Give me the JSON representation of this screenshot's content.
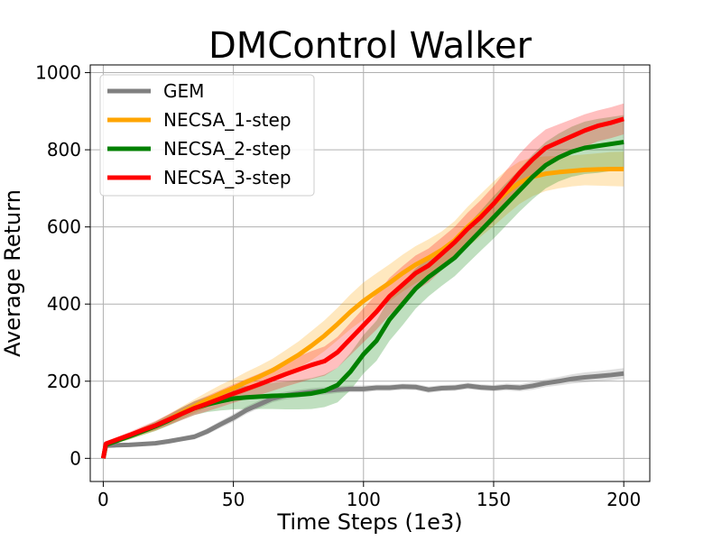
{
  "chart_data": {
    "type": "line",
    "title": "DMControl Walker",
    "xlabel": "Time Steps (1e3)",
    "ylabel": "Average Return",
    "xlim": [
      -5,
      210
    ],
    "ylim": [
      -60,
      1020
    ],
    "xticks": [
      0,
      50,
      100,
      150,
      200
    ],
    "yticks": [
      0,
      200,
      400,
      600,
      800,
      1000
    ],
    "grid": true,
    "legend_position": "top-left",
    "series": [
      {
        "name": "GEM",
        "color": "#808080",
        "x": [
          0,
          1,
          5,
          10,
          15,
          20,
          25,
          30,
          35,
          40,
          45,
          50,
          55,
          60,
          65,
          70,
          75,
          80,
          85,
          90,
          95,
          100,
          105,
          110,
          115,
          120,
          125,
          130,
          135,
          140,
          145,
          150,
          155,
          160,
          165,
          170,
          175,
          180,
          185,
          190,
          195,
          200
        ],
        "y": [
          0,
          33,
          34,
          35,
          37,
          39,
          44,
          50,
          56,
          70,
          88,
          105,
          125,
          140,
          155,
          163,
          168,
          172,
          175,
          178,
          180,
          180,
          183,
          183,
          186,
          185,
          178,
          182,
          183,
          188,
          184,
          182,
          185,
          183,
          188,
          195,
          200,
          206,
          210,
          213,
          216,
          220
        ],
        "band": [
          0,
          4,
          4,
          5,
          5,
          5,
          6,
          6,
          7,
          8,
          9,
          10,
          10,
          10,
          10,
          10,
          10,
          10,
          10,
          9,
          9,
          9,
          8,
          8,
          8,
          8,
          8,
          8,
          8,
          8,
          8,
          8,
          9,
          9,
          10,
          10,
          11,
          12,
          13,
          13,
          14,
          14
        ]
      },
      {
        "name": "NECSA_1-step",
        "color": "#ffa500",
        "x": [
          0,
          1,
          5,
          10,
          15,
          20,
          25,
          30,
          35,
          40,
          45,
          50,
          55,
          60,
          65,
          70,
          75,
          80,
          85,
          90,
          95,
          100,
          105,
          110,
          115,
          120,
          125,
          130,
          135,
          140,
          145,
          150,
          155,
          160,
          165,
          170,
          175,
          180,
          185,
          190,
          195,
          200
        ],
        "y": [
          0,
          35,
          45,
          57,
          70,
          83,
          100,
          118,
          135,
          152,
          168,
          182,
          198,
          212,
          228,
          248,
          268,
          292,
          318,
          348,
          380,
          408,
          432,
          455,
          480,
          502,
          520,
          540,
          565,
          600,
          630,
          660,
          690,
          715,
          730,
          738,
          742,
          745,
          748,
          749,
          750,
          750
        ],
        "band": [
          0,
          5,
          6,
          8,
          10,
          12,
          14,
          16,
          18,
          20,
          22,
          24,
          26,
          28,
          30,
          32,
          35,
          38,
          40,
          42,
          45,
          48,
          48,
          48,
          48,
          48,
          48,
          48,
          50,
          52,
          55,
          58,
          58,
          55,
          50,
          45,
          42,
          40,
          40,
          42,
          44,
          45
        ]
      },
      {
        "name": "NECSA_2-step",
        "color": "#008000",
        "x": [
          0,
          1,
          5,
          10,
          15,
          20,
          25,
          30,
          35,
          40,
          45,
          50,
          55,
          60,
          65,
          70,
          75,
          80,
          85,
          90,
          95,
          100,
          105,
          110,
          115,
          120,
          125,
          130,
          135,
          140,
          145,
          150,
          155,
          160,
          165,
          170,
          175,
          180,
          185,
          190,
          195,
          200
        ],
        "y": [
          0,
          35,
          45,
          57,
          70,
          83,
          98,
          115,
          130,
          140,
          148,
          155,
          158,
          160,
          162,
          163,
          165,
          168,
          175,
          190,
          225,
          270,
          305,
          360,
          400,
          440,
          470,
          495,
          520,
          555,
          590,
          625,
          660,
          695,
          730,
          760,
          780,
          795,
          805,
          810,
          815,
          820
        ],
        "band": [
          0,
          5,
          6,
          8,
          10,
          12,
          14,
          16,
          18,
          20,
          24,
          28,
          30,
          32,
          34,
          36,
          38,
          40,
          42,
          45,
          48,
          50,
          52,
          55,
          55,
          52,
          50,
          48,
          48,
          50,
          52,
          55,
          55,
          55,
          58,
          60,
          62,
          65,
          68,
          70,
          70,
          70
        ]
      },
      {
        "name": "NECSA_3-step",
        "color": "#ff0000",
        "x": [
          0,
          1,
          5,
          10,
          15,
          20,
          25,
          30,
          35,
          40,
          45,
          50,
          55,
          60,
          65,
          70,
          75,
          80,
          85,
          90,
          95,
          100,
          105,
          110,
          115,
          120,
          125,
          130,
          135,
          140,
          145,
          150,
          155,
          160,
          165,
          170,
          175,
          180,
          185,
          190,
          195,
          200
        ],
        "y": [
          0,
          38,
          48,
          60,
          73,
          85,
          100,
          115,
          130,
          142,
          155,
          168,
          180,
          192,
          205,
          218,
          230,
          242,
          252,
          275,
          310,
          345,
          380,
          420,
          450,
          480,
          500,
          530,
          560,
          595,
          625,
          660,
          700,
          740,
          775,
          805,
          820,
          835,
          850,
          862,
          870,
          880
        ],
        "band": [
          0,
          5,
          6,
          8,
          10,
          12,
          14,
          16,
          18,
          20,
          22,
          24,
          26,
          28,
          30,
          32,
          34,
          36,
          38,
          40,
          42,
          44,
          46,
          48,
          48,
          46,
          44,
          42,
          40,
          42,
          44,
          46,
          48,
          50,
          50,
          48,
          46,
          44,
          42,
          40,
          40,
          40
        ]
      }
    ]
  }
}
